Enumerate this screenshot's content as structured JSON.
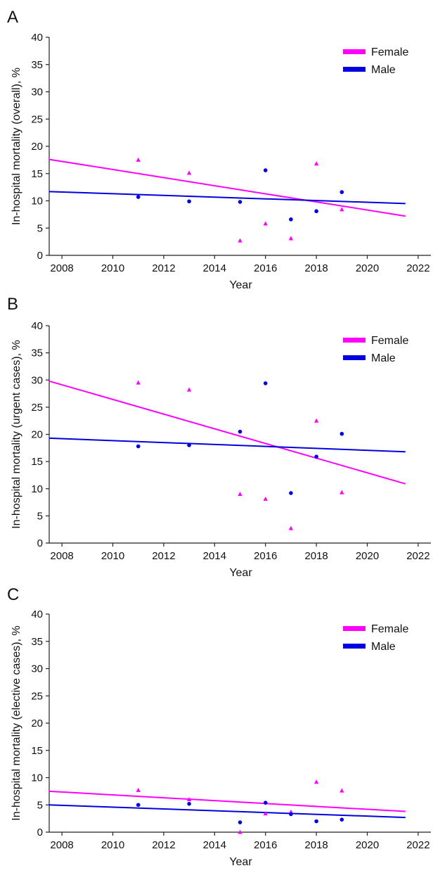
{
  "colors": {
    "female": "#ff00ff",
    "male": "#0000e0",
    "axis": "#222222"
  },
  "chart_data": [
    {
      "panel": "A",
      "type": "scatter",
      "xlabel": "Year",
      "ylabel": "In-hospital mortality (overall), %",
      "xlim": [
        2007.5,
        2022.5
      ],
      "ylim": [
        0,
        40
      ],
      "xticks": [
        2008,
        2010,
        2012,
        2014,
        2016,
        2018,
        2020,
        2022
      ],
      "yticks": [
        0,
        5,
        10,
        15,
        20,
        25,
        30,
        35,
        40
      ],
      "legend": "top-right",
      "series": [
        {
          "name": "Female",
          "marker": "triangle",
          "x": [
            2011,
            2013,
            2015,
            2016,
            2017,
            2018,
            2019
          ],
          "y": [
            17.5,
            15.1,
            2.7,
            5.8,
            3.1,
            16.8,
            8.4
          ],
          "fit": {
            "x": [
              2007.5,
              2021.5
            ],
            "y": [
              17.6,
              7.2
            ]
          }
        },
        {
          "name": "Male",
          "marker": "circle",
          "x": [
            2011,
            2013,
            2015,
            2016,
            2017,
            2018,
            2019
          ],
          "y": [
            10.7,
            9.9,
            9.8,
            15.6,
            6.6,
            8.1,
            11.6
          ],
          "fit": {
            "x": [
              2007.5,
              2021.5
            ],
            "y": [
              11.7,
              9.5
            ]
          }
        }
      ]
    },
    {
      "panel": "B",
      "type": "scatter",
      "xlabel": "Year",
      "ylabel": "In-hospital mortality (urgent cases), %",
      "xlim": [
        2007.5,
        2022.5
      ],
      "ylim": [
        0,
        40
      ],
      "xticks": [
        2008,
        2010,
        2012,
        2014,
        2016,
        2018,
        2020,
        2022
      ],
      "yticks": [
        0,
        5,
        10,
        15,
        20,
        25,
        30,
        35,
        40
      ],
      "legend": "top-right",
      "series": [
        {
          "name": "Female",
          "marker": "triangle",
          "x": [
            2011,
            2013,
            2015,
            2016,
            2017,
            2018,
            2019
          ],
          "y": [
            29.5,
            28.2,
            9.0,
            8.1,
            2.7,
            22.5,
            9.3
          ],
          "fit": {
            "x": [
              2007.5,
              2021.5
            ],
            "y": [
              29.8,
              10.9
            ]
          }
        },
        {
          "name": "Male",
          "marker": "circle",
          "x": [
            2011,
            2013,
            2015,
            2016,
            2017,
            2018,
            2019
          ],
          "y": [
            17.8,
            18.0,
            20.5,
            29.4,
            9.2,
            15.9,
            20.1
          ],
          "fit": {
            "x": [
              2007.5,
              2021.5
            ],
            "y": [
              19.3,
              16.8
            ]
          }
        }
      ]
    },
    {
      "panel": "C",
      "type": "scatter",
      "xlabel": "Year",
      "ylabel": "In-hospital mortality (elective cases), %",
      "xlim": [
        2007.5,
        2022.5
      ],
      "ylim": [
        0,
        40
      ],
      "xticks": [
        2008,
        2010,
        2012,
        2014,
        2016,
        2018,
        2020,
        2022
      ],
      "yticks": [
        0,
        5,
        10,
        15,
        20,
        25,
        30,
        35,
        40
      ],
      "legend": "top-right",
      "series": [
        {
          "name": "Female",
          "marker": "triangle",
          "x": [
            2011,
            2013,
            2015,
            2016,
            2017,
            2018,
            2019
          ],
          "y": [
            7.7,
            6.0,
            0.0,
            3.4,
            3.7,
            9.2,
            7.6
          ],
          "fit": {
            "x": [
              2007.5,
              2021.5
            ],
            "y": [
              7.5,
              3.8
            ]
          }
        },
        {
          "name": "Male",
          "marker": "circle",
          "x": [
            2011,
            2013,
            2015,
            2016,
            2017,
            2018,
            2019
          ],
          "y": [
            5.0,
            5.2,
            1.8,
            5.4,
            3.3,
            2.0,
            2.3
          ],
          "fit": {
            "x": [
              2007.5,
              2021.5
            ],
            "y": [
              5.0,
              2.7
            ]
          }
        }
      ]
    }
  ]
}
